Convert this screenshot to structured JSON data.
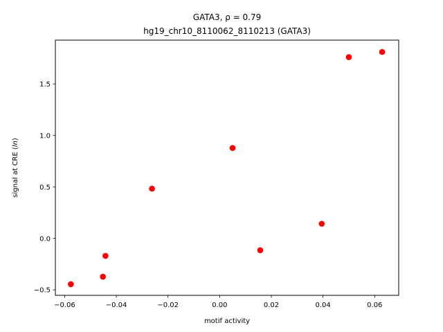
{
  "chart_data": {
    "type": "scatter",
    "title_line1": "GATA3, ρ = 0.79",
    "title_line2": "hg19_chr10_8110062_8110213 (GATA3)",
    "xlabel": "motif activity",
    "ylabel_prefix": "signal at CRE (",
    "ylabel_italic": "ln",
    "ylabel_suffix": ")",
    "xlim": [
      -0.0636,
      0.0693
    ],
    "ylim": [
      -0.553,
      1.925
    ],
    "xticks": [
      -0.06,
      -0.04,
      -0.02,
      0.0,
      0.02,
      0.04,
      0.06
    ],
    "xtick_labels": [
      "−0.06",
      "−0.04",
      "−0.02",
      "0.00",
      "0.02",
      "0.04",
      "0.06"
    ],
    "yticks": [
      -0.5,
      0.0,
      0.5,
      1.0,
      1.5
    ],
    "ytick_labels": [
      "−0.5",
      "0.0",
      "0.5",
      "1.0",
      "1.5"
    ],
    "marker_color": "#ff0000",
    "grid": false,
    "legend": false,
    "points": [
      {
        "x": -0.0576,
        "y": -0.445
      },
      {
        "x": -0.0452,
        "y": -0.372
      },
      {
        "x": -0.0442,
        "y": -0.17
      },
      {
        "x": -0.0262,
        "y": 0.483
      },
      {
        "x": 0.005,
        "y": 0.878
      },
      {
        "x": 0.0157,
        "y": -0.115
      },
      {
        "x": 0.0395,
        "y": 0.142
      },
      {
        "x": 0.05,
        "y": 1.76
      },
      {
        "x": 0.0629,
        "y": 1.81
      }
    ]
  }
}
